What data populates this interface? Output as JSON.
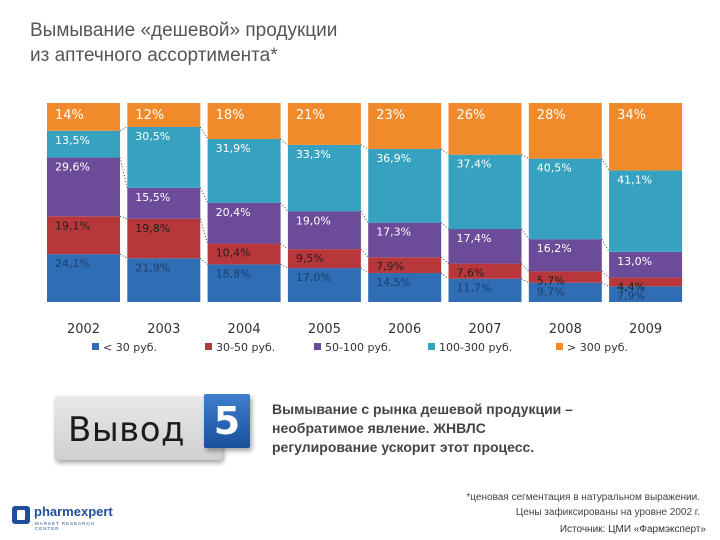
{
  "title": {
    "line1": "Вымывание «дешевой» продукции",
    "line2": "из аптечного ассортимента*"
  },
  "colors": {
    "lt30": "#2f6db5",
    "30_50": "#b8373a",
    "50_100": "#6c4b99",
    "100_300": "#36a2c0",
    "gt300": "#f08a2a"
  },
  "chart_data": {
    "type": "bar",
    "stacked": true,
    "percent": true,
    "categories": [
      "2002",
      "2003",
      "2004",
      "2005",
      "2006",
      "2007",
      "2008",
      "2009"
    ],
    "series": [
      {
        "name": "< 30 руб.",
        "values": [
          24.1,
          21.9,
          18.8,
          17.0,
          14.5,
          11.7,
          9.7,
          7.9
        ],
        "labels": [
          "24,1%",
          "21,9%",
          "18,8%",
          "17,0%",
          "14,5%",
          "11,7%",
          "9,7%",
          "7,9%"
        ]
      },
      {
        "name": "30-50 руб.",
        "values": [
          19.1,
          19.8,
          10.4,
          9.5,
          7.9,
          7.6,
          5.7,
          4.4
        ],
        "labels": [
          "19,1%",
          "19,8%",
          "10,4%",
          "9,5%",
          "7,9%",
          "7,6%",
          "5,7%",
          "4,4%"
        ]
      },
      {
        "name": "50-100 руб.",
        "values": [
          29.6,
          15.5,
          20.4,
          19.0,
          17.3,
          17.4,
          16.2,
          13.0
        ],
        "labels": [
          "29,6%",
          "15,5%",
          "20,4%",
          "19,0%",
          "17,3%",
          "17,4%",
          "16,2%",
          "13,0%"
        ]
      },
      {
        "name": "100-300 руб.",
        "values": [
          13.5,
          30.5,
          31.9,
          33.3,
          36.9,
          37.4,
          40.5,
          41.1
        ],
        "labels": [
          "13,5%",
          "30,5%",
          "31,9%",
          "33,3%",
          "36,9%",
          "37,4%",
          "40,5%",
          "41,1%"
        ]
      },
      {
        "name": "> 300 руб.",
        "values": [
          14,
          12,
          18,
          21,
          23,
          26,
          28,
          34
        ],
        "labels": [
          "14%",
          "12%",
          "18%",
          "21%",
          "23%",
          "26%",
          "28%",
          "34%"
        ]
      }
    ],
    "legend_position": "bottom",
    "grid": false
  },
  "conclusion": {
    "badge_word": "Вывод",
    "badge_number": "5",
    "line1": "Вымывание с рынка дешевой продукции –",
    "line2": "необратимое явление. ЖНВЛС",
    "line3": "регулирование ускорит этот процесс."
  },
  "footnote": {
    "line1": "*ценовая сегментация в натуральном выражении.",
    "line2": "Цены зафиксированы на уровне 2002 г."
  },
  "source": "Источник: ЦМИ «Фармэксперт»",
  "logo": {
    "name": "pharmexpert",
    "tagline": "MARKET RESEARCH CENTER"
  }
}
